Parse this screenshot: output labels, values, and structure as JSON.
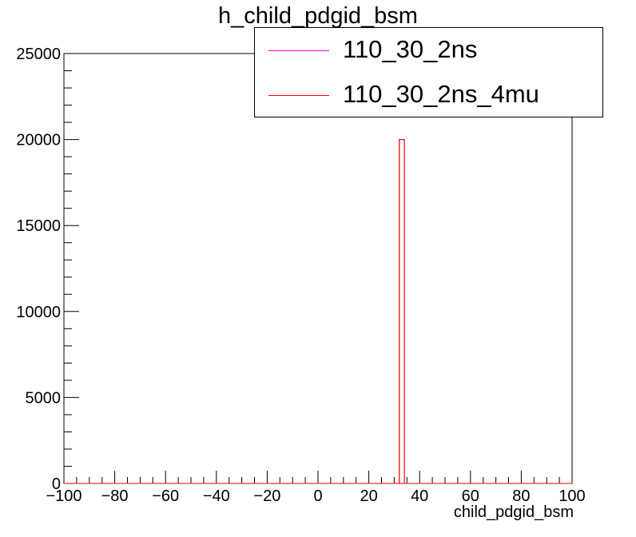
{
  "chart_data": {
    "type": "bar",
    "title": "h_child_pdgid_bsm",
    "xlabel": "child_pdgid_bsm",
    "ylabel": "",
    "xlim": [
      -100,
      100
    ],
    "ylim": [
      0,
      25000
    ],
    "x_ticks": [
      -100,
      -80,
      -60,
      -40,
      -20,
      0,
      20,
      40,
      60,
      80,
      100
    ],
    "y_ticks": [
      0,
      5000,
      10000,
      15000,
      20000,
      25000
    ],
    "x_tick_labels": [
      "−100",
      "−80",
      "−60",
      "−40",
      "−20",
      "0",
      "20",
      "40",
      "60",
      "80",
      "100"
    ],
    "y_tick_labels": [
      "0",
      "5000",
      "10000",
      "15000",
      "20000",
      "25000"
    ],
    "grid": false,
    "legend_position": "top-right",
    "series": [
      {
        "name": "110_30_2ns",
        "color": "#ff00ff",
        "bins": []
      },
      {
        "name": "110_30_2ns_4mu",
        "color": "#ff0000",
        "bins": [
          {
            "x0": 32,
            "x1": 34,
            "value": 20000
          }
        ]
      }
    ]
  }
}
